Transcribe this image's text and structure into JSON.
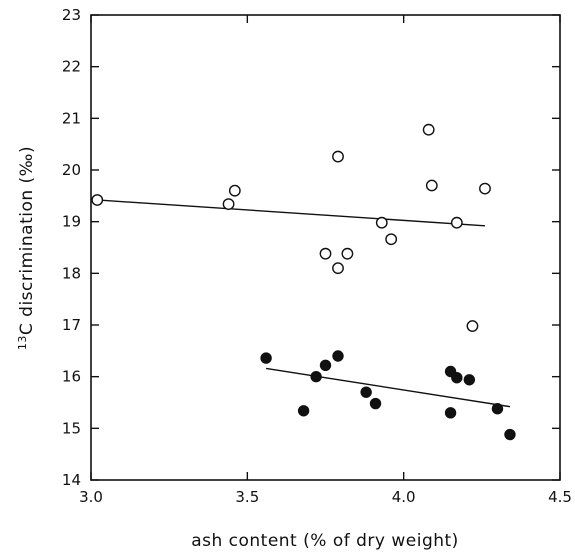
{
  "chart_data": {
    "type": "scatter",
    "xlabel": "ash content (% of dry weight)",
    "ylabel_superscript": "13",
    "ylabel": "C discrimination (‰)",
    "xlim": [
      3.0,
      4.5
    ],
    "ylim": [
      14,
      23
    ],
    "x_ticks": [
      "3.0",
      "3.5",
      "4.0",
      "4.5"
    ],
    "y_ticks": [
      "14",
      "15",
      "16",
      "17",
      "18",
      "19",
      "20",
      "21",
      "22",
      "23"
    ],
    "grid": false,
    "series": [
      {
        "marker": "open-circle",
        "points": [
          {
            "x": 3.02,
            "y": 19.42
          },
          {
            "x": 3.44,
            "y": 19.34
          },
          {
            "x": 3.46,
            "y": 19.6
          },
          {
            "x": 3.75,
            "y": 18.38
          },
          {
            "x": 3.79,
            "y": 20.26
          },
          {
            "x": 3.79,
            "y": 18.1
          },
          {
            "x": 3.82,
            "y": 18.38
          },
          {
            "x": 3.93,
            "y": 18.98
          },
          {
            "x": 3.96,
            "y": 18.66
          },
          {
            "x": 4.08,
            "y": 20.78
          },
          {
            "x": 4.09,
            "y": 19.7
          },
          {
            "x": 4.17,
            "y": 18.98
          },
          {
            "x": 4.22,
            "y": 16.98
          },
          {
            "x": 4.26,
            "y": 19.64
          }
        ],
        "fit_line": [
          {
            "x": 3.02,
            "y": 19.42
          },
          {
            "x": 4.26,
            "y": 18.92
          }
        ]
      },
      {
        "marker": "filled-circle",
        "points": [
          {
            "x": 3.56,
            "y": 16.36
          },
          {
            "x": 3.68,
            "y": 15.34
          },
          {
            "x": 3.72,
            "y": 16.0
          },
          {
            "x": 3.75,
            "y": 16.22
          },
          {
            "x": 3.79,
            "y": 16.4
          },
          {
            "x": 3.88,
            "y": 15.7
          },
          {
            "x": 3.91,
            "y": 15.48
          },
          {
            "x": 4.15,
            "y": 16.1
          },
          {
            "x": 4.15,
            "y": 15.3
          },
          {
            "x": 4.17,
            "y": 15.98
          },
          {
            "x": 4.21,
            "y": 15.94
          },
          {
            "x": 4.3,
            "y": 15.38
          },
          {
            "x": 4.34,
            "y": 14.88
          }
        ],
        "fit_line": [
          {
            "x": 3.56,
            "y": 16.16
          },
          {
            "x": 4.34,
            "y": 15.42
          }
        ]
      }
    ]
  }
}
